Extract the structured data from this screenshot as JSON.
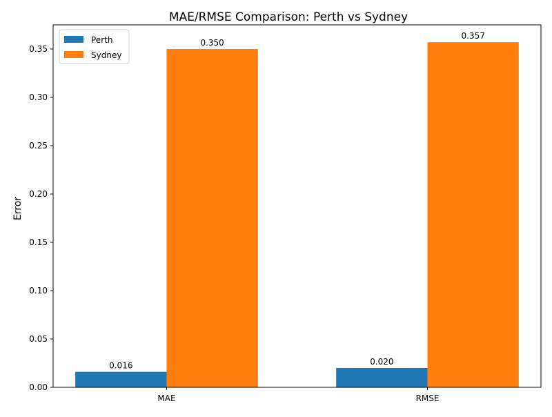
{
  "chart_data": {
    "type": "bar",
    "title": "MAE/RMSE Comparison: Perth vs Sydney",
    "xlabel": "",
    "ylabel": "Error",
    "categories": [
      "MAE",
      "RMSE"
    ],
    "ylim": [
      0,
      0.375
    ],
    "yticks": [
      0.0,
      0.05,
      0.1,
      0.15,
      0.2,
      0.25,
      0.3,
      0.35
    ],
    "ytick_labels": [
      "0.00",
      "0.05",
      "0.10",
      "0.15",
      "0.20",
      "0.25",
      "0.30",
      "0.35"
    ],
    "grid": false,
    "legend_position": "top-left",
    "series": [
      {
        "name": "Perth",
        "color": "#1f77b4",
        "values": [
          0.016,
          0.02
        ],
        "labels": [
          "0.016",
          "0.020"
        ]
      },
      {
        "name": "Sydney",
        "color": "#ff7f0e",
        "values": [
          0.35,
          0.357
        ],
        "labels": [
          "0.350",
          "0.357"
        ]
      }
    ]
  }
}
